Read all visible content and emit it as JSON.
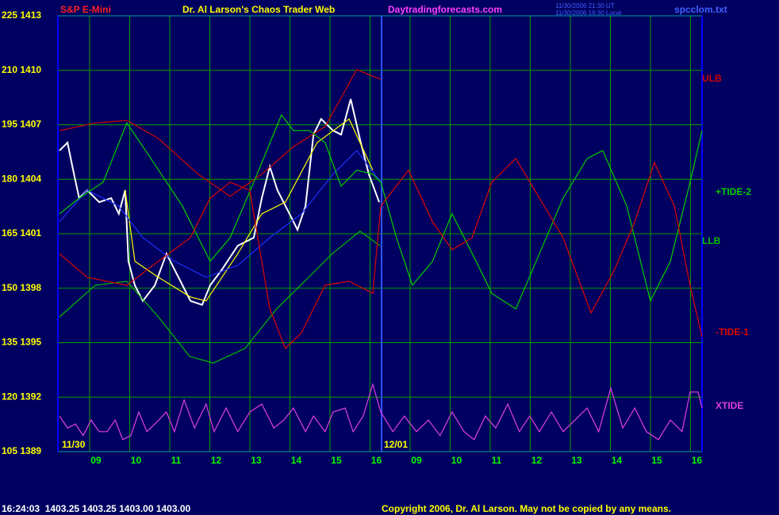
{
  "chart_data": {
    "type": "line",
    "symbol": "S&P E-Mini",
    "title": "Dr. Al Larson's Chaos Trader Web",
    "website": "Daytradingforecasts.com",
    "timestamps": [
      "11/30/2006 21:30 UT",
      "11/30/2006 16:30 Local"
    ],
    "filename": "spcclom.txt",
    "dates": [
      "11/30",
      "12/01"
    ],
    "footer": {
      "quote": "16:24:03  1403.25 1403.25 1403.00 1403.00",
      "copyright": "Copyright 2006, Dr. Al Larson. May not be copied by any means."
    },
    "grid": true,
    "xlim": [
      -0.95,
      15.13
    ],
    "xticks": [
      {
        "value": 0,
        "label": "09"
      },
      {
        "value": 1,
        "label": "10"
      },
      {
        "value": 2,
        "label": "11"
      },
      {
        "value": 3,
        "label": "12"
      },
      {
        "value": 4,
        "label": "13"
      },
      {
        "value": 5,
        "label": "14"
      },
      {
        "value": 6,
        "label": "15"
      },
      {
        "value": 7,
        "label": "16"
      },
      {
        "value": 8,
        "label": "09"
      },
      {
        "value": 9,
        "label": "10"
      },
      {
        "value": 10,
        "label": "11"
      },
      {
        "value": 11,
        "label": "12"
      },
      {
        "value": 12,
        "label": "13"
      },
      {
        "value": 13,
        "label": "14"
      },
      {
        "value": 14,
        "label": "15"
      },
      {
        "value": 15,
        "label": "16"
      }
    ],
    "ylim": [
      105,
      225
    ],
    "yticks": [
      {
        "value": 225,
        "label": "225 1413"
      },
      {
        "value": 210,
        "label": "210 1410"
      },
      {
        "value": 195,
        "label": "195 1407"
      },
      {
        "value": 180,
        "label": "180 1404"
      },
      {
        "value": 165,
        "label": "165 1401"
      },
      {
        "value": 150,
        "label": "150 1398"
      },
      {
        "value": 135,
        "label": "135 1395"
      },
      {
        "value": 120,
        "label": "120 1392"
      },
      {
        "value": 105,
        "label": "105 1389"
      }
    ],
    "series": [
      {
        "color": "#ffffff",
        "x": [
          -0.91,
          -0.71,
          -0.57,
          -0.42,
          -0.22,
          0.08,
          0.38,
          0.57,
          0.73,
          0.81,
          0.97,
          1.17,
          1.47,
          1.76,
          2.06,
          2.36,
          2.65,
          2.85,
          3.15,
          3.54,
          3.94,
          4.14,
          4.34,
          4.53,
          4.83,
          5.03,
          5.23,
          5.43,
          5.62,
          5.92,
          6.12,
          6.36,
          6.61,
          6.81,
          7.07
        ],
        "values": [
          187.9,
          190.1,
          182.5,
          174.8,
          177.0,
          173.7,
          174.8,
          170.5,
          177.0,
          157.4,
          150.8,
          146.5,
          150.8,
          159.5,
          153.0,
          146.5,
          145.4,
          150.8,
          155.2,
          161.7,
          163.9,
          174.8,
          183.5,
          177.0,
          170.5,
          166.1,
          172.6,
          192.3,
          196.6,
          193.4,
          192.3,
          202.1,
          190.1,
          181.4,
          173.7
        ]
      },
      {
        "color": "#ffff00",
        "x": [
          0.73,
          0.97,
          1.56,
          2.36,
          2.75,
          3.54,
          4.14,
          4.73,
          5.52,
          6.32,
          6.91
        ],
        "values": [
          177.0,
          157.4,
          153.0,
          147.6,
          146.5,
          159.5,
          170.5,
          173.7,
          190.1,
          196.6,
          182.5
        ]
      },
      {
        "color": "#2030ff",
        "x": [
          -0.91,
          -0.22,
          0.57,
          1.17,
          1.96,
          2.75,
          3.54,
          4.34,
          5.13,
          5.92,
          6.51,
          7.11
        ],
        "values": [
          168.3,
          177.0,
          172.6,
          163.9,
          157.4,
          153.0,
          156.3,
          163.9,
          170.5,
          181.4,
          187.9,
          179.2
        ]
      },
      {
        "name": "ULB",
        "color": "#d00000",
        "x": [
          -0.91,
          -0.02,
          0.77,
          1.56,
          2.55,
          3.35,
          4.14,
          4.93,
          5.72,
          6.51,
          7.11
        ],
        "values": [
          193.4,
          195.5,
          196.2,
          191.2,
          181.4,
          175.3,
          181.4,
          189.0,
          194.5,
          210.2,
          207.5
        ]
      },
      {
        "name": "LLB",
        "color": "#00c000",
        "x": [
          -0.91,
          -0.02,
          0.77,
          1.56,
          2.34,
          2.93,
          3.72,
          4.51,
          5.31,
          5.9,
          6.59,
          7.09
        ],
        "values": [
          142.1,
          150.8,
          151.9,
          142.1,
          131.2,
          129.4,
          133.4,
          144.3,
          153.0,
          159.5,
          165.7,
          161.7
        ]
      },
      {
        "name": "+TIDE-2",
        "color": "#00d000",
        "x": [
          -0.91,
          -0.42,
          0.18,
          0.77,
          1.37,
          2.16,
          2.85,
          3.35,
          3.94,
          4.63,
          4.93,
          5.33,
          5.72,
          6.12,
          6.51,
          6.91,
          7.11,
          7.5,
          7.9,
          8.4,
          8.89,
          9.49,
          9.88,
          10.48,
          11.07,
          11.66,
          12.26,
          12.65,
          13.25,
          13.84,
          14.34,
          14.83,
          15.13
        ],
        "values": [
          170.5,
          174.8,
          179.2,
          195.5,
          185.7,
          172.6,
          157.4,
          163.9,
          179.2,
          197.7,
          193.4,
          193.4,
          190.1,
          178.1,
          182.5,
          181.4,
          179.2,
          163.9,
          150.8,
          157.4,
          170.5,
          157.4,
          148.6,
          144.3,
          159.5,
          174.8,
          185.7,
          187.9,
          172.6,
          146.5,
          157.4,
          179.2,
          193.4
        ]
      },
      {
        "name": "-TIDE-1",
        "color": "#e00000",
        "x": [
          -0.91,
          -0.22,
          0.77,
          1.56,
          2.36,
          2.85,
          3.35,
          3.84,
          4.34,
          4.73,
          5.13,
          5.72,
          6.32,
          6.91,
          7.11,
          7.8,
          8.4,
          8.89,
          9.39,
          9.88,
          10.48,
          11.07,
          11.66,
          12.36,
          12.95,
          13.45,
          13.94,
          14.44,
          14.83,
          15.13
        ],
        "values": [
          159.5,
          153.0,
          150.8,
          157.4,
          163.9,
          174.8,
          179.2,
          177.0,
          144.3,
          133.4,
          137.7,
          150.8,
          151.9,
          148.6,
          172.6,
          182.5,
          168.3,
          160.6,
          163.9,
          179.2,
          185.7,
          174.8,
          163.9,
          143.2,
          155.2,
          168.3,
          184.6,
          172.6,
          150.8,
          136.6
        ]
      },
      {
        "name": "XTIDE",
        "color": "#e040e0",
        "x": [
          -0.91,
          -0.71,
          -0.51,
          -0.32,
          -0.12,
          0.08,
          0.28,
          0.48,
          0.67,
          0.87,
          1.07,
          1.27,
          1.47,
          1.76,
          1.96,
          2.2,
          2.46,
          2.75,
          2.95,
          3.25,
          3.54,
          3.84,
          4.14,
          4.44,
          4.69,
          4.93,
          5.23,
          5.43,
          5.72,
          5.92,
          6.22,
          6.42,
          6.67,
          6.91,
          7.11,
          7.41,
          7.7,
          8.0,
          8.3,
          8.59,
          8.89,
          9.19,
          9.44,
          9.72,
          9.98,
          10.28,
          10.57,
          10.83,
          11.07,
          11.37,
          11.66,
          11.96,
          12.26,
          12.55,
          12.85,
          13.15,
          13.45,
          13.74,
          14.04,
          14.34,
          14.63,
          14.83,
          15.03,
          15.13
        ],
        "values": [
          114.8,
          111.5,
          112.6,
          109.4,
          113.7,
          110.5,
          110.5,
          113.7,
          108.3,
          109.4,
          115.9,
          110.5,
          112.6,
          115.9,
          110.5,
          119.2,
          111.5,
          118.1,
          110.5,
          117.0,
          110.5,
          115.9,
          118.1,
          111.5,
          113.7,
          117.0,
          110.5,
          114.8,
          110.5,
          115.9,
          117.0,
          110.5,
          114.8,
          123.5,
          115.9,
          110.5,
          114.8,
          110.5,
          113.7,
          109.4,
          115.9,
          110.5,
          108.3,
          114.8,
          111.5,
          118.1,
          110.5,
          114.8,
          110.5,
          115.9,
          110.5,
          113.7,
          117.0,
          110.5,
          122.5,
          111.5,
          117.0,
          110.5,
          108.3,
          113.7,
          110.5,
          121.4,
          121.4,
          117.0
        ]
      }
    ]
  }
}
